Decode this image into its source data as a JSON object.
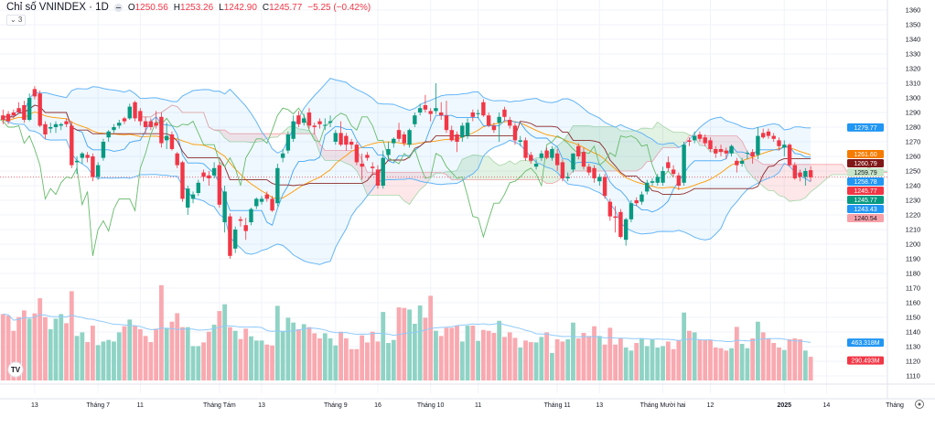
{
  "header": {
    "title": "Chỉ số VNINDEX · 1D",
    "open_label": "O",
    "open": "1250.56",
    "high_label": "H",
    "high": "1253.26",
    "low_label": "L",
    "low": "1242.90",
    "close_label": "C",
    "close": "1245.77",
    "change": "−5.25 (−0.42%)",
    "indicators_collapse": "⌄ 3"
  },
  "colors": {
    "up": "#089981",
    "down": "#f23645",
    "bb": "#64b5f6",
    "basis": "#ff9800",
    "kijun": "#8d2a2a",
    "tenkan": "#42a5f5",
    "chikou": "#66bb6a",
    "leadA": "#a5d6a7",
    "leadB": "#f7a1a8"
  },
  "logo_text": "TV",
  "time_axis_end_label": "Tháng",
  "chart_data": {
    "type": "candlestick",
    "title": "Chỉ số VNINDEX · 1D",
    "ylim": [
      1105,
      1365
    ],
    "y_ticks": [
      1360,
      1350,
      1340,
      1330,
      1320,
      1310,
      1300,
      1290,
      1280,
      1270,
      1260,
      1250,
      1240,
      1230,
      1220,
      1210,
      1200,
      1190,
      1180,
      1170,
      1160,
      1150,
      1140,
      1130,
      1120,
      1110
    ],
    "x_labels": [
      {
        "index": 6,
        "label": "13"
      },
      {
        "index": 18,
        "label": "Tháng 7"
      },
      {
        "index": 26,
        "label": "11"
      },
      {
        "index": 41,
        "label": "Tháng Tám"
      },
      {
        "index": 49,
        "label": "13"
      },
      {
        "index": 63,
        "label": "Tháng 9"
      },
      {
        "index": 71,
        "label": "16"
      },
      {
        "index": 81,
        "label": "Tháng 10"
      },
      {
        "index": 90,
        "label": "11"
      },
      {
        "index": 105,
        "label": "Tháng 11"
      },
      {
        "index": 113,
        "label": "13"
      },
      {
        "index": 125,
        "label": "Tháng Mười hai"
      },
      {
        "index": 134,
        "label": "12"
      },
      {
        "index": 148,
        "label": "2025"
      },
      {
        "index": 156,
        "label": "14"
      }
    ],
    "ohlc": [
      [
        1288,
        1292,
        1282,
        1285
      ],
      [
        1289,
        1291,
        1282,
        1284
      ],
      [
        1290,
        1292,
        1286,
        1288
      ],
      [
        1293,
        1297,
        1290,
        1290
      ],
      [
        1295,
        1298,
        1283,
        1285
      ],
      [
        1285,
        1303,
        1284,
        1300
      ],
      [
        1306,
        1308,
        1299,
        1301
      ],
      [
        1303,
        1305,
        1280,
        1281
      ],
      [
        1282,
        1284,
        1272,
        1275
      ],
      [
        1279,
        1283,
        1276,
        1280
      ],
      [
        1280,
        1284,
        1276,
        1282
      ],
      [
        1281,
        1283,
        1278,
        1282
      ],
      [
        1284,
        1286,
        1280,
        1282
      ],
      [
        1281,
        1284,
        1252,
        1254
      ],
      [
        1256,
        1260,
        1248,
        1257
      ],
      [
        1259,
        1263,
        1255,
        1262
      ],
      [
        1261,
        1263,
        1256,
        1259
      ],
      [
        1260,
        1262,
        1243,
        1246
      ],
      [
        1246,
        1256,
        1244,
        1254
      ],
      [
        1259,
        1272,
        1257,
        1270
      ],
      [
        1273,
        1278,
        1270,
        1277
      ],
      [
        1278,
        1282,
        1276,
        1280
      ],
      [
        1281,
        1285,
        1279,
        1283
      ],
      [
        1286,
        1287,
        1282,
        1284
      ],
      [
        1286,
        1296,
        1285,
        1294
      ],
      [
        1297,
        1298,
        1284,
        1286
      ],
      [
        1291,
        1293,
        1281,
        1284
      ],
      [
        1284,
        1287,
        1276,
        1280
      ],
      [
        1284,
        1286,
        1278,
        1280
      ],
      [
        1283,
        1291,
        1279,
        1281
      ],
      [
        1287,
        1290,
        1266,
        1269
      ],
      [
        1271,
        1283,
        1265,
        1274
      ],
      [
        1275,
        1277,
        1264,
        1265
      ],
      [
        1262,
        1263,
        1252,
        1254
      ],
      [
        1256,
        1257,
        1229,
        1231
      ],
      [
        1225,
        1240,
        1220,
        1238
      ],
      [
        1231,
        1236,
        1228,
        1234
      ],
      [
        1235,
        1244,
        1233,
        1242
      ],
      [
        1249,
        1251,
        1243,
        1246
      ],
      [
        1247,
        1250,
        1240,
        1245
      ],
      [
        1247,
        1256,
        1245,
        1252
      ],
      [
        1254,
        1256,
        1225,
        1227
      ],
      [
        1215,
        1240,
        1208,
        1236
      ],
      [
        1219,
        1221,
        1190,
        1192
      ],
      [
        1197,
        1212,
        1194,
        1210
      ],
      [
        1217,
        1219,
        1212,
        1216
      ],
      [
        1213,
        1218,
        1203,
        1209
      ],
      [
        1215,
        1225,
        1213,
        1224
      ],
      [
        1226,
        1232,
        1224,
        1231
      ],
      [
        1229,
        1233,
        1227,
        1231
      ],
      [
        1234,
        1236,
        1229,
        1231
      ],
      [
        1231,
        1233,
        1222,
        1223
      ],
      [
        1228,
        1255,
        1226,
        1252
      ],
      [
        1259,
        1265,
        1256,
        1262
      ],
      [
        1264,
        1277,
        1262,
        1275
      ],
      [
        1272,
        1288,
        1270,
        1284
      ],
      [
        1288,
        1291,
        1280,
        1282
      ],
      [
        1283,
        1289,
        1281,
        1286
      ],
      [
        1290,
        1293,
        1279,
        1281
      ],
      [
        1281,
        1283,
        1275,
        1280
      ],
      [
        1284,
        1286,
        1279,
        1282
      ],
      [
        1281,
        1286,
        1278,
        1281.5
      ],
      [
        1283,
        1288,
        1280,
        1284
      ],
      [
        1270,
        1278,
        1268,
        1276
      ],
      [
        1276,
        1284,
        1267,
        1268
      ],
      [
        1274,
        1276,
        1264,
        1268
      ],
      [
        1270,
        1272,
        1265,
        1268
      ],
      [
        1268,
        1270,
        1254,
        1256
      ],
      [
        1255,
        1262,
        1244,
        1253
      ],
      [
        1261,
        1263,
        1257,
        1259
      ],
      [
        1253,
        1256,
        1247,
        1252
      ],
      [
        1251,
        1254,
        1238,
        1240
      ],
      [
        1240,
        1264,
        1238,
        1259
      ],
      [
        1261,
        1270,
        1258,
        1265
      ],
      [
        1269,
        1273,
        1266,
        1272
      ],
      [
        1278,
        1283,
        1270,
        1272
      ],
      [
        1275,
        1277,
        1267,
        1269
      ],
      [
        1268,
        1279,
        1266,
        1278
      ],
      [
        1282,
        1290,
        1280,
        1288
      ],
      [
        1290,
        1296,
        1288,
        1293
      ],
      [
        1295,
        1302,
        1290,
        1292
      ],
      [
        1291,
        1293,
        1284,
        1289
      ],
      [
        1291,
        1310,
        1289,
        1293
      ],
      [
        1290,
        1297,
        1285,
        1288
      ],
      [
        1288,
        1298,
        1276,
        1278
      ],
      [
        1278,
        1281,
        1270,
        1271
      ],
      [
        1275,
        1277,
        1263,
        1270
      ],
      [
        1273,
        1283,
        1270,
        1281
      ],
      [
        1274,
        1286,
        1272,
        1283
      ],
      [
        1290,
        1292,
        1284,
        1287
      ],
      [
        1289,
        1292,
        1286,
        1289.5
      ],
      [
        1297,
        1299,
        1287,
        1288
      ],
      [
        1288,
        1290,
        1280,
        1281
      ],
      [
        1281,
        1283,
        1276,
        1278
      ],
      [
        1283,
        1290,
        1270,
        1287
      ],
      [
        1292,
        1294,
        1284,
        1287
      ],
      [
        1285,
        1287,
        1279,
        1281
      ],
      [
        1281,
        1283,
        1268,
        1271
      ],
      [
        1270,
        1274,
        1267,
        1271
      ],
      [
        1271,
        1273,
        1257,
        1259
      ],
      [
        1261,
        1263,
        1255,
        1257
      ],
      [
        1253,
        1258,
        1251,
        1255
      ],
      [
        1259,
        1264,
        1257,
        1262
      ],
      [
        1264,
        1266,
        1258,
        1259
      ],
      [
        1259,
        1267,
        1257,
        1265
      ],
      [
        1262,
        1265,
        1250,
        1254
      ],
      [
        1256,
        1258,
        1243,
        1245
      ],
      [
        1245,
        1249,
        1243,
        1246
      ],
      [
        1251,
        1262,
        1249,
        1262
      ],
      [
        1267,
        1269,
        1258,
        1260
      ],
      [
        1263,
        1266,
        1251,
        1253
      ],
      [
        1253,
        1255,
        1247,
        1249
      ],
      [
        1252,
        1254,
        1242,
        1245
      ],
      [
        1243,
        1248,
        1240,
        1246
      ],
      [
        1246,
        1248,
        1231,
        1233
      ],
      [
        1229,
        1231,
        1216,
        1219
      ],
      [
        1219,
        1226,
        1208,
        1218
      ],
      [
        1222,
        1224,
        1204,
        1205
      ],
      [
        1203,
        1218,
        1199,
        1217
      ],
      [
        1217,
        1230,
        1215,
        1228
      ],
      [
        1230,
        1232,
        1226,
        1228
      ],
      [
        1229,
        1236,
        1227,
        1234
      ],
      [
        1236,
        1244,
        1234,
        1242
      ],
      [
        1242,
        1245,
        1240,
        1243
      ],
      [
        1242,
        1248,
        1240,
        1246
      ],
      [
        1242,
        1253,
        1240,
        1250
      ],
      [
        1256,
        1260,
        1250,
        1252
      ],
      [
        1251,
        1254,
        1246,
        1248
      ],
      [
        1247,
        1249,
        1237,
        1240
      ],
      [
        1242,
        1270,
        1240,
        1268
      ],
      [
        1271,
        1273,
        1267,
        1270
      ],
      [
        1271,
        1277,
        1269,
        1274
      ],
      [
        1275,
        1277,
        1270,
        1272
      ],
      [
        1273,
        1275,
        1267,
        1269
      ],
      [
        1271,
        1273,
        1263,
        1265
      ],
      [
        1265,
        1267,
        1259,
        1262
      ],
      [
        1265,
        1268,
        1260,
        1263
      ],
      [
        1264,
        1266,
        1258,
        1262
      ],
      [
        1262,
        1268,
        1260,
        1267
      ],
      [
        1257,
        1259,
        1249,
        1254
      ],
      [
        1255,
        1259,
        1253,
        1257
      ],
      [
        1262,
        1264,
        1258,
        1262.5
      ],
      [
        1263,
        1265,
        1255,
        1260
      ],
      [
        1261,
        1280,
        1258,
        1274
      ],
      [
        1276,
        1279,
        1272,
        1273
      ],
      [
        1277,
        1279,
        1272,
        1274
      ],
      [
        1274,
        1276,
        1270,
        1272
      ],
      [
        1271,
        1273,
        1264,
        1267
      ],
      [
        1266,
        1271,
        1260,
        1268
      ],
      [
        1268,
        1269,
        1253,
        1254
      ],
      [
        1254,
        1256,
        1244,
        1245
      ],
      [
        1249,
        1251,
        1243,
        1246
      ],
      [
        1246,
        1252,
        1240,
        1250
      ],
      [
        1250.56,
        1253.26,
        1242.9,
        1245.77
      ]
    ],
    "volume_millions": [
      813,
      794,
      608,
      776,
      858,
      757,
      821,
      1007,
      776,
      627,
      757,
      813,
      701,
      1093,
      545,
      589,
      470,
      671,
      433,
      477,
      496,
      477,
      589,
      664,
      746,
      671,
      627,
      545,
      470,
      634,
      1167,
      645,
      720,
      824,
      653,
      653,
      421,
      421,
      466,
      597,
      683,
      850,
      933,
      653,
      608,
      507,
      634,
      541,
      489,
      489,
      440,
      429,
      914,
      608,
      768,
      709,
      627,
      690,
      653,
      578,
      515,
      578,
      515,
      429,
      597,
      515,
      384,
      384,
      552,
      466,
      597,
      477,
      839,
      459,
      496,
      895,
      888,
      869,
      694,
      918,
      768,
      1037,
      608,
      545,
      645,
      645,
      671,
      477,
      671,
      671,
      485,
      619,
      608,
      582,
      731,
      533,
      589,
      522,
      403,
      489,
      470,
      466,
      533,
      589,
      336,
      504,
      477,
      504,
      709,
      515,
      582,
      545,
      664,
      545,
      440,
      645,
      440,
      515,
      403,
      366,
      459,
      515,
      421,
      507,
      403,
      421,
      477,
      384,
      496,
      832,
      608,
      589,
      496,
      496,
      496,
      403,
      395,
      366,
      395,
      656,
      448,
      395,
      515,
      720,
      589,
      515,
      459,
      403,
      373,
      504,
      515,
      504,
      366,
      290.49
    ],
    "indicators": {
      "bollinger": {
        "period": 20,
        "mult": 2,
        "upper": "1279.77",
        "basis": "1261.60",
        "lower": "1243.43"
      },
      "ichimoku": {
        "conversion": "1258.78",
        "base": "1260.79",
        "lagging": "1245.77",
        "lead1": "1259.79",
        "lead2": "1240.54"
      },
      "last_price": "1245.77",
      "volume_ma": "463.318M",
      "volume_last": "290.493M"
    }
  }
}
